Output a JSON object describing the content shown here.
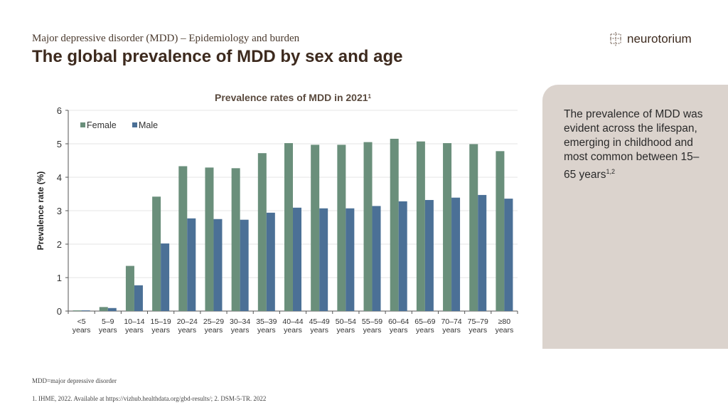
{
  "header": {
    "subtitle": "Major depressive disorder (MDD) – Epidemiology and burden",
    "title": "The global prevalence of MDD by sex and age"
  },
  "logo": {
    "text": "neurotorium"
  },
  "panel": {
    "text": "The prevalence of MDD was evident across the lifespan, emerging in childhood and most common between 15–65 years",
    "sup": "1,2"
  },
  "footer": {
    "abbrev": "MDD=major depressive disorder",
    "refs": "1. IHME, 2022. Available at https://vizhub.healthdata.org/gbd-results/; 2. DSM-5-TR. 2022"
  },
  "chart_data": {
    "type": "bar",
    "title": "Prevalence rates of MDD in 2021",
    "title_sup": "1",
    "xlabel": "",
    "ylabel": "Prevalence rate (%)",
    "ylim": [
      0,
      6
    ],
    "yticks": [
      0,
      1,
      2,
      3,
      4,
      5,
      6
    ],
    "grid": true,
    "legend": "top-left",
    "categories": [
      [
        "<5",
        "years"
      ],
      [
        "5–9",
        "years"
      ],
      [
        "10–14",
        "years"
      ],
      [
        "15–19",
        "years"
      ],
      [
        "20–24",
        "years"
      ],
      [
        "25–29",
        "years"
      ],
      [
        "30–34",
        "years"
      ],
      [
        "35–39",
        "years"
      ],
      [
        "40–44",
        "years"
      ],
      [
        "45–49",
        "years"
      ],
      [
        "50–54",
        "years"
      ],
      [
        "55–59",
        "years"
      ],
      [
        "60–64",
        "years"
      ],
      [
        "65–69",
        "years"
      ],
      [
        "70–74",
        "years"
      ],
      [
        "75–79",
        "years"
      ],
      [
        "≥80",
        "years"
      ]
    ],
    "series": [
      {
        "name": "Female",
        "color": "#6a8f7b",
        "values": [
          0.02,
          0.12,
          1.35,
          3.42,
          4.33,
          4.29,
          4.27,
          4.72,
          5.02,
          4.97,
          4.97,
          5.05,
          5.15,
          5.07,
          5.02,
          4.99,
          4.78
        ]
      },
      {
        "name": "Male",
        "color": "#4b7096",
        "values": [
          0.02,
          0.09,
          0.77,
          2.02,
          2.77,
          2.75,
          2.73,
          2.94,
          3.09,
          3.07,
          3.07,
          3.14,
          3.28,
          3.32,
          3.39,
          3.47,
          3.36
        ]
      }
    ]
  }
}
